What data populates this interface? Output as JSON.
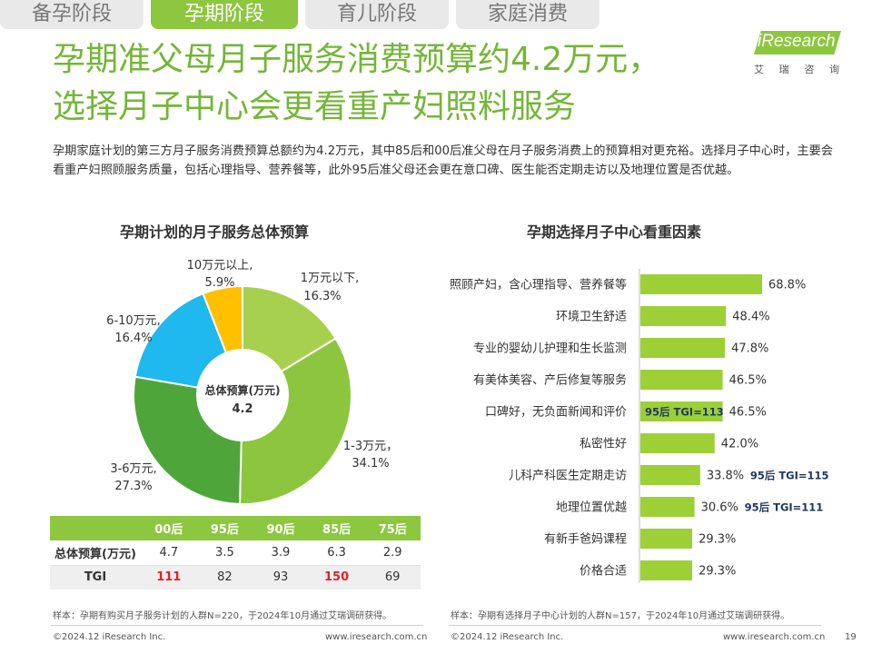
{
  "tabs": [
    {
      "label": "备孕阶段",
      "active": false
    },
    {
      "label": "孕期阶段",
      "active": true
    },
    {
      "label": "育儿阶段",
      "active": false
    },
    {
      "label": "家庭消费",
      "active": false
    }
  ],
  "header": {
    "title_line1": "孕期准父母月子服务消费预算约4.2万元，",
    "title_line2": "选择月子中心会更看重产妇照料服务",
    "logo_text": "iResearch",
    "logo_cn": [
      "艾",
      "瑞",
      "咨",
      "询"
    ]
  },
  "description": "孕期家庭计划的第三方月子服务消费预算总额约为4.2万元，其中85后和00后准父母在月子服务消费上的预算相对更充裕。选择月子中心时，主要会看重产妇照顾服务质量，包括心理指导、营养餐等，此外95后准父母还会更在意口碑、医生能否定期走访以及地理位置是否优越。",
  "colors": {
    "accent": "#8dc63f",
    "title_green": "#74b638",
    "red": "#e0222a",
    "navy": "#1f3864"
  },
  "chart_data": [
    {
      "type": "pie",
      "title": "孕期计划的月子服务总体预算",
      "center_label": "总体预算(万元)",
      "center_value": "4.2",
      "slices": [
        {
          "label": "1万元以下,",
          "value_text": "16.3%",
          "value": 16.3,
          "color": "#a8d04f"
        },
        {
          "label": "1-3万元，",
          "value_text": "34.1%",
          "value": 34.1,
          "color": "#8cc63e"
        },
        {
          "label": "3-6万元,",
          "value_text": "27.3%",
          "value": 27.3,
          "color": "#4ea63a"
        },
        {
          "label": "6-10万元,",
          "value_text": "16.4%",
          "value": 16.4,
          "color": "#1fb8ef"
        },
        {
          "label": "10万元以上,",
          "value_text": "5.9%",
          "value": 5.9,
          "color": "#ffc000"
        }
      ]
    },
    {
      "type": "bar",
      "orientation": "horizontal",
      "title": "孕期选择月子中心看重因素",
      "xlim": [
        0,
        100
      ],
      "bar_color": "#9cd036",
      "categories": [
        "照顾产妇，含心理指导、营养餐等",
        "环境卫生舒适",
        "专业的婴幼儿护理和生长监测",
        "有美体美容、产后修复等服务",
        "口碑好，无负面新闻和评价",
        "私密性好",
        "儿科产科医生定期走访",
        "地理位置优越",
        "有新手爸妈课程",
        "价格合适"
      ],
      "values": [
        68.8,
        48.4,
        47.8,
        46.5,
        46.5,
        42.0,
        33.8,
        30.6,
        29.3,
        29.3
      ],
      "value_labels": [
        "68.8%",
        "48.4%",
        "47.8%",
        "46.5%",
        "46.5%",
        "42.0%",
        "33.8%",
        "30.6%",
        "29.3%",
        "29.3%"
      ],
      "annotations": [
        {
          "index": 4,
          "text": "95后 TGI=113",
          "placement": "inside"
        },
        {
          "index": 6,
          "text": "95后 TGI=115",
          "placement": "after-value"
        },
        {
          "index": 7,
          "text": "95后 TGI=111",
          "placement": "after-value"
        }
      ]
    },
    {
      "type": "table",
      "columns": [
        "00后",
        "95后",
        "90后",
        "85后",
        "75后"
      ],
      "rows": [
        {
          "label": "总体预算(万元)",
          "values": [
            "4.7",
            "3.5",
            "3.9",
            "6.3",
            "2.9"
          ],
          "highlight": []
        },
        {
          "label": "TGI",
          "values": [
            "111",
            "82",
            "93",
            "150",
            "69"
          ],
          "highlight": [
            0,
            3
          ]
        }
      ]
    }
  ],
  "notes": {
    "left": "样本：孕期有购买月子服务计划的人群N=220，于2024年10月通过艾瑞调研获得。",
    "right": "样本：孕期有选择月子中心计划的人群N=157，于2024年10月通过艾瑞调研获得。"
  },
  "footer": {
    "left_copyright": "©2024.12 iResearch Inc.",
    "left_url": "www.iresearch.com.cn",
    "right_copyright": "©2024.12 iResearch Inc.",
    "right_url": "www.iresearch.com.cn",
    "page_number": "19"
  }
}
